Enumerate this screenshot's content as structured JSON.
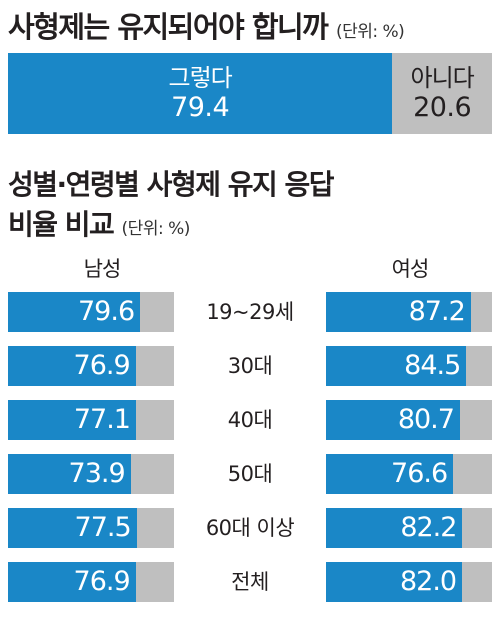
{
  "header": {
    "title": "사형제는 유지되어야 합니까",
    "unit": "(단위: %)"
  },
  "section2": {
    "title_line1": "성별·연령별 사형제 유지 응답",
    "title_line2": "비율 비교",
    "unit": "(단위: %)"
  },
  "colors": {
    "accent": "#1a87c7",
    "gray": "#bfbfbf",
    "text": "#231f20"
  },
  "chart_data": [
    {
      "type": "bar",
      "series": [
        {
          "name": "그렇다",
          "values": [
            79.4
          ]
        },
        {
          "name": "아니다",
          "values": [
            20.6
          ]
        }
      ],
      "value_labels": [
        "79.4",
        "20.6"
      ],
      "stacked": true,
      "orientation": "horizontal"
    },
    {
      "type": "bar",
      "orientation": "horizontal",
      "categories": [
        "19~29세",
        "30대",
        "40대",
        "50대",
        "60대 이상",
        "전체"
      ],
      "series": [
        {
          "name": "남성",
          "values": [
            79.6,
            76.9,
            77.1,
            73.9,
            77.5,
            76.9
          ],
          "labels": [
            "79.6",
            "76.9",
            "77.1",
            "73.9",
            "77.5",
            "76.9"
          ]
        },
        {
          "name": "여성",
          "values": [
            87.2,
            84.5,
            80.7,
            76.6,
            82.2,
            82.0
          ],
          "labels": [
            "87.2",
            "84.5",
            "80.7",
            "76.6",
            "82.2",
            "82.0"
          ]
        }
      ],
      "xlim": [
        0,
        100
      ]
    }
  ]
}
